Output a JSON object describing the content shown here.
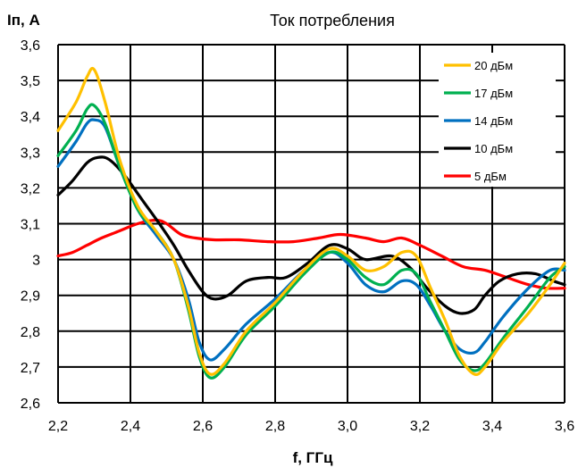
{
  "chart_data": {
    "type": "line",
    "title": "Ток потребления",
    "ylabel": "Iп, А",
    "xlabel": "f, ГГц",
    "xlim": [
      2.2,
      3.6
    ],
    "ylim": [
      2.6,
      3.6
    ],
    "x_ticks": [
      "2,2",
      "2,4",
      "2,6",
      "2,8",
      "3,0",
      "3,2",
      "3,4",
      "3,6"
    ],
    "y_ticks": [
      "2,6",
      "2,7",
      "2,8",
      "2,9",
      "3",
      "3,1",
      "3,2",
      "3,3",
      "3,4",
      "3,5",
      "3,6"
    ],
    "grid": true,
    "legend_position": "top-right",
    "series": [
      {
        "name": "20 дБм",
        "color": "#FFC000",
        "x": [
          2.2,
          2.25,
          2.28,
          2.3,
          2.33,
          2.37,
          2.42,
          2.47,
          2.52,
          2.56,
          2.59,
          2.62,
          2.66,
          2.72,
          2.8,
          2.88,
          2.95,
          3.0,
          3.05,
          3.1,
          3.15,
          3.19,
          3.23,
          3.27,
          3.31,
          3.35,
          3.38,
          3.43,
          3.5,
          3.56,
          3.6
        ],
        "y": [
          3.36,
          3.44,
          3.51,
          3.53,
          3.44,
          3.28,
          3.15,
          3.08,
          3.0,
          2.87,
          2.74,
          2.68,
          2.71,
          2.8,
          2.88,
          2.97,
          3.03,
          3.01,
          2.97,
          2.98,
          3.02,
          3.01,
          2.92,
          2.83,
          2.73,
          2.68,
          2.7,
          2.77,
          2.85,
          2.93,
          2.99
        ]
      },
      {
        "name": "17 дБм",
        "color": "#00B050",
        "x": [
          2.2,
          2.25,
          2.28,
          2.3,
          2.33,
          2.37,
          2.42,
          2.47,
          2.52,
          2.56,
          2.59,
          2.62,
          2.66,
          2.72,
          2.8,
          2.88,
          2.95,
          3.0,
          3.05,
          3.1,
          3.15,
          3.19,
          3.23,
          3.27,
          3.31,
          3.35,
          3.38,
          3.43,
          3.5,
          3.56,
          3.6
        ],
        "y": [
          3.29,
          3.36,
          3.42,
          3.43,
          3.38,
          3.26,
          3.14,
          3.08,
          3.0,
          2.86,
          2.73,
          2.67,
          2.7,
          2.79,
          2.87,
          2.96,
          3.02,
          3.0,
          2.95,
          2.93,
          2.97,
          2.96,
          2.88,
          2.8,
          2.72,
          2.69,
          2.71,
          2.78,
          2.87,
          2.95,
          2.98
        ]
      },
      {
        "name": "14 дБм",
        "color": "#0070C0",
        "x": [
          2.2,
          2.25,
          2.28,
          2.3,
          2.33,
          2.37,
          2.42,
          2.47,
          2.52,
          2.56,
          2.59,
          2.62,
          2.66,
          2.72,
          2.8,
          2.88,
          2.95,
          3.0,
          3.05,
          3.1,
          3.15,
          3.19,
          3.23,
          3.27,
          3.31,
          3.35,
          3.38,
          3.43,
          3.5,
          3.56,
          3.6
        ],
        "y": [
          3.26,
          3.33,
          3.38,
          3.39,
          3.37,
          3.26,
          3.14,
          3.07,
          3.0,
          2.89,
          2.77,
          2.72,
          2.75,
          2.82,
          2.89,
          2.97,
          3.02,
          2.99,
          2.93,
          2.91,
          2.94,
          2.93,
          2.87,
          2.8,
          2.75,
          2.74,
          2.77,
          2.84,
          2.92,
          2.97,
          2.97
        ]
      },
      {
        "name": "10 дБм",
        "color": "#000000",
        "x": [
          2.2,
          2.24,
          2.28,
          2.31,
          2.34,
          2.38,
          2.43,
          2.48,
          2.52,
          2.56,
          2.6,
          2.63,
          2.67,
          2.72,
          2.78,
          2.83,
          2.89,
          2.95,
          3.0,
          3.05,
          3.12,
          3.17,
          3.22,
          3.27,
          3.31,
          3.35,
          3.38,
          3.42,
          3.47,
          3.52,
          3.57,
          3.6
        ],
        "y": [
          3.18,
          3.22,
          3.27,
          3.285,
          3.28,
          3.24,
          3.17,
          3.1,
          3.04,
          2.97,
          2.91,
          2.89,
          2.9,
          2.94,
          2.95,
          2.95,
          2.99,
          3.04,
          3.03,
          3.0,
          3.01,
          2.98,
          2.92,
          2.87,
          2.85,
          2.86,
          2.9,
          2.94,
          2.96,
          2.96,
          2.94,
          2.93
        ]
      },
      {
        "name": "5 дБм",
        "color": "#FF0000",
        "x": [
          2.2,
          2.24,
          2.28,
          2.32,
          2.37,
          2.42,
          2.47,
          2.5,
          2.54,
          2.58,
          2.63,
          2.7,
          2.78,
          2.85,
          2.92,
          2.98,
          3.05,
          3.1,
          3.15,
          3.2,
          3.26,
          3.32,
          3.38,
          3.44,
          3.5,
          3.55,
          3.6
        ],
        "y": [
          3.01,
          3.02,
          3.04,
          3.06,
          3.08,
          3.1,
          3.11,
          3.1,
          3.07,
          3.06,
          3.055,
          3.055,
          3.05,
          3.05,
          3.06,
          3.07,
          3.06,
          3.05,
          3.06,
          3.04,
          3.01,
          2.98,
          2.97,
          2.95,
          2.93,
          2.92,
          2.92
        ]
      }
    ]
  }
}
